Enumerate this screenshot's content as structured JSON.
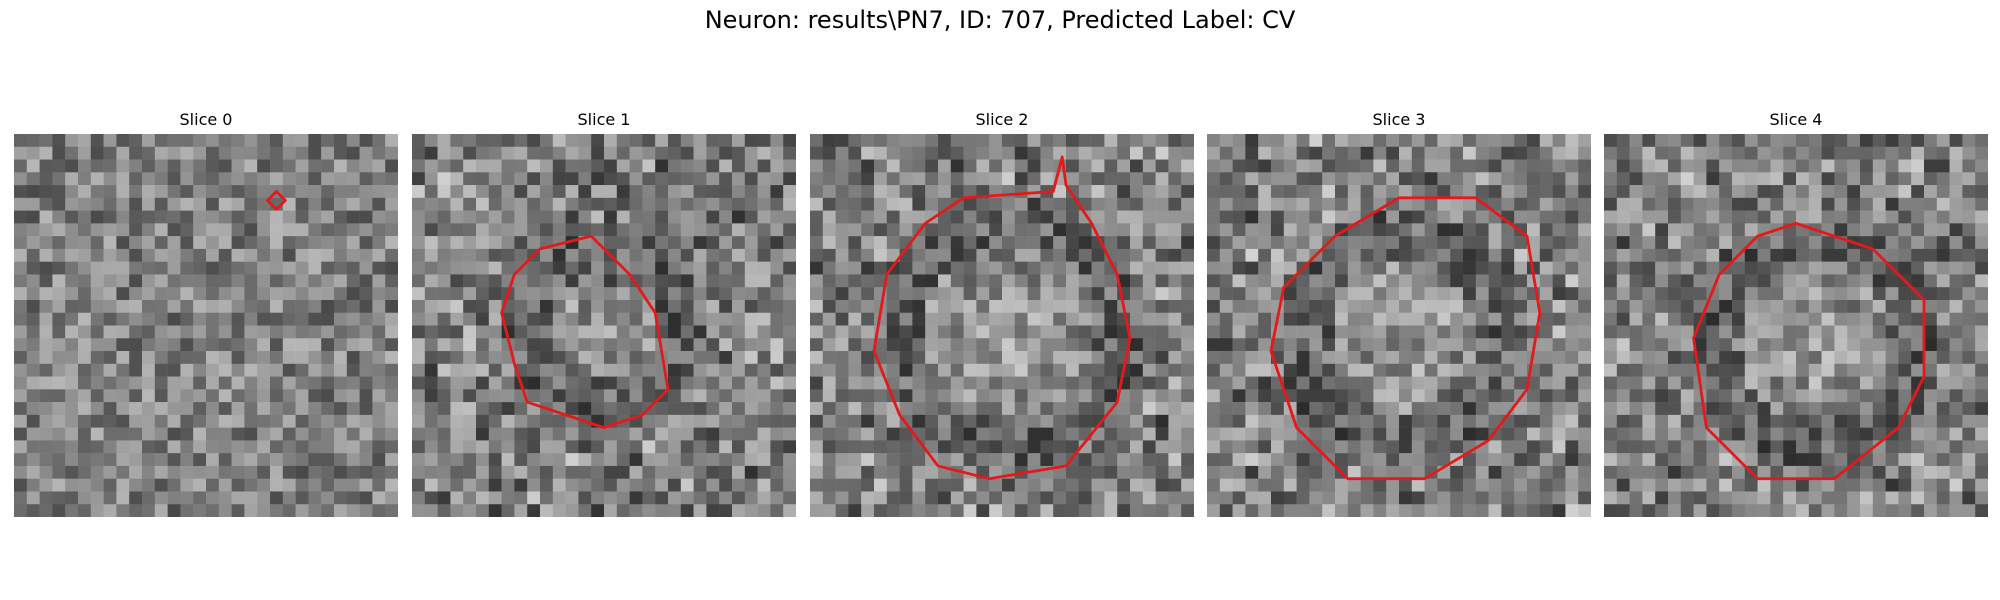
{
  "figure": {
    "title": "Neuron: results\\PN7, ID: 707, Predicted Label: CV"
  },
  "colors": {
    "contour": "#e31a1c"
  },
  "panels": [
    {
      "title": "Slice 0",
      "contour": "tiny",
      "seed": 11
    },
    {
      "title": "Slice 1",
      "contour": "small",
      "seed": 23
    },
    {
      "title": "Slice 2",
      "contour": "large",
      "seed": 37
    },
    {
      "title": "Slice 3",
      "contour": "large2",
      "seed": 41
    },
    {
      "title": "Slice 4",
      "contour": "medium",
      "seed": 53
    }
  ]
}
